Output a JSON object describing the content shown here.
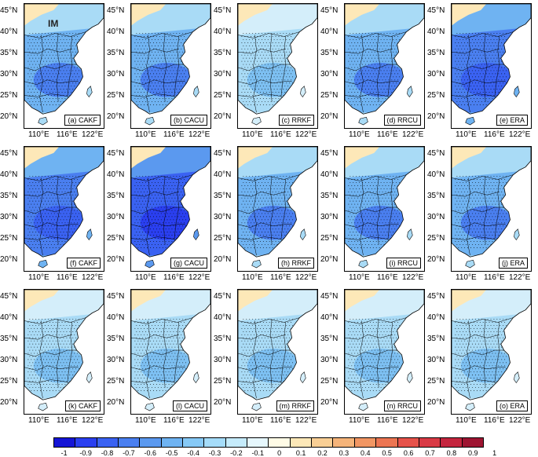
{
  "latitude_ticks": [
    "45°N",
    "40°N",
    "35°N",
    "30°N",
    "25°N",
    "20°N"
  ],
  "longitude_ticks": [
    "110°E",
    "116°E",
    "122°E"
  ],
  "region_label": "IM",
  "panels": [
    {
      "tag": "(a) CAKF",
      "tone": "mid"
    },
    {
      "tag": "(b) CACU",
      "tone": "mid"
    },
    {
      "tag": "(c) RRKF",
      "tone": "light"
    },
    {
      "tag": "(d) RRCU",
      "tone": "mid"
    },
    {
      "tag": "(e) ERA",
      "tone": "dark"
    },
    {
      "tag": "(f) CAKF",
      "tone": "dark"
    },
    {
      "tag": "(g) CACU",
      "tone": "darkest"
    },
    {
      "tag": "(h) RRKF",
      "tone": "mid"
    },
    {
      "tag": "(i) RRCU",
      "tone": "mid"
    },
    {
      "tag": "(j) ERA",
      "tone": "mid"
    },
    {
      "tag": "(k) CAKF",
      "tone": "light"
    },
    {
      "tag": "(l) CACU",
      "tone": "light"
    },
    {
      "tag": "(m) RRKF",
      "tone": "light"
    },
    {
      "tag": "(n) RRCU",
      "tone": "light"
    },
    {
      "tag": "(o) ERA",
      "tone": "light"
    }
  ],
  "colorbar": {
    "labels": [
      "-1",
      "-0.9",
      "-0.8",
      "-0.7",
      "-0.6",
      "-0.5",
      "-0.4",
      "-0.3",
      "-0.2",
      "-0.1",
      "0",
      "0.1",
      "0.2",
      "0.3",
      "0.4",
      "0.5",
      "0.6",
      "0.7",
      "0.8",
      "0.9",
      "1"
    ],
    "colors": [
      "#1515d6",
      "#2a3ff0",
      "#3a62f2",
      "#4a7ff0",
      "#5b99ef",
      "#6fb3f2",
      "#86c9f6",
      "#a5dcf9",
      "#c5ebfb",
      "#e6f7fd",
      "#fffbe6",
      "#fde8b8",
      "#f9cf95",
      "#f5b47a",
      "#f19663",
      "#ec7552",
      "#e6524a",
      "#d93a45",
      "#c4253e",
      "#9e1532"
    ]
  },
  "tone_colors": {
    "light": [
      "#d4eefa",
      "#a9dbf6",
      "#7dc0f2"
    ],
    "mid": [
      "#a9dbf6",
      "#6fb3f2",
      "#4a7ff0"
    ],
    "dark": [
      "#6fb3f2",
      "#4a7ff0",
      "#3a62f2"
    ],
    "darkest": [
      "#5b99ef",
      "#3a62f2",
      "#2a3ff0"
    ],
    "north_tint": "#fde8b8"
  }
}
